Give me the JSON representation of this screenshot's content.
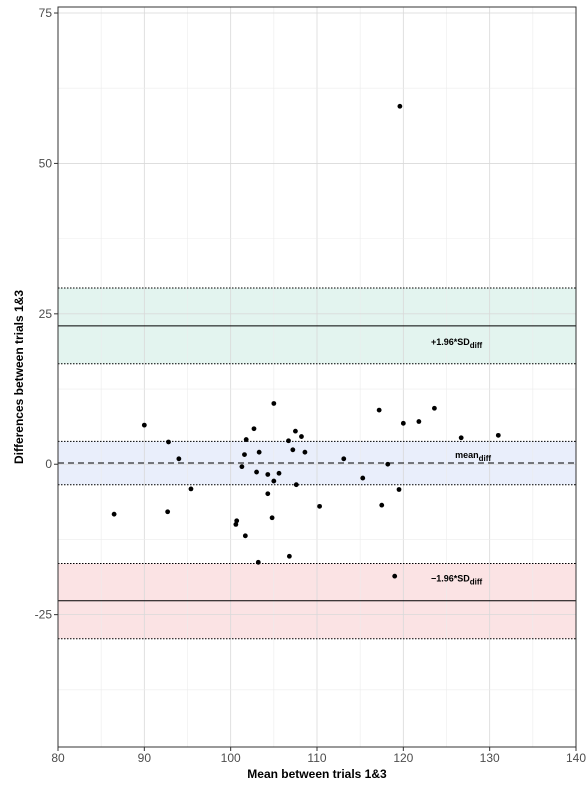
{
  "chart_data": {
    "type": "scatter",
    "title": "",
    "xlabel": "Mean between trials 1&3",
    "ylabel": "Differences between trials 1&3",
    "xlim": [
      80,
      140
    ],
    "ylim": [
      -47,
      76
    ],
    "x_ticks": [
      80,
      90,
      100,
      110,
      120,
      130,
      140
    ],
    "y_ticks": [
      -25,
      0,
      25,
      50,
      75
    ],
    "x_tick_labels": [
      "80",
      "90",
      "100",
      "110",
      "120",
      "130",
      "140"
    ],
    "y_tick_labels": [
      "-25",
      "0",
      "25",
      "50",
      "75"
    ],
    "grid": true,
    "bands": [
      {
        "name": "upper",
        "low": 16.7,
        "high": 29.3,
        "line": 23.0,
        "color": "#e3f4ef"
      },
      {
        "name": "mean",
        "low": -3.4,
        "high": 3.8,
        "line": 0.2,
        "color": "#e9eefb"
      },
      {
        "name": "lower",
        "low": -29.0,
        "high": -16.5,
        "line": -22.7,
        "color": "#fbe3e4"
      }
    ],
    "annotations": {
      "upper": {
        "main": "+1.96*SD",
        "sub": "diff",
        "x": 123.2,
        "y": 19.8
      },
      "mean": {
        "main": "mean",
        "sub": "diff",
        "x": 126.0,
        "y": 1.0
      },
      "lower": {
        "main": "−1.96*SD",
        "sub": "diff",
        "x": 123.2,
        "y": -19.5
      }
    },
    "points": [
      [
        86.5,
        -8.3
      ],
      [
        90.0,
        6.5
      ],
      [
        92.8,
        3.7
      ],
      [
        92.7,
        -7.9
      ],
      [
        94.0,
        0.9
      ],
      [
        95.4,
        -4.1
      ],
      [
        100.7,
        -9.4
      ],
      [
        100.6,
        -10.0
      ],
      [
        101.3,
        -0.4
      ],
      [
        101.6,
        1.6
      ],
      [
        101.7,
        -11.9
      ],
      [
        101.8,
        4.1
      ],
      [
        102.7,
        5.9
      ],
      [
        103.0,
        -1.3
      ],
      [
        103.3,
        2.0
      ],
      [
        103.2,
        -16.3
      ],
      [
        104.3,
        -4.9
      ],
      [
        104.3,
        -1.7
      ],
      [
        104.8,
        -8.9
      ],
      [
        105.0,
        10.1
      ],
      [
        105.0,
        -2.8
      ],
      [
        105.6,
        -1.5
      ],
      [
        106.8,
        -15.3
      ],
      [
        106.7,
        3.9
      ],
      [
        107.2,
        2.4
      ],
      [
        107.5,
        5.5
      ],
      [
        107.6,
        -3.4
      ],
      [
        108.2,
        4.6
      ],
      [
        108.6,
        2.0
      ],
      [
        110.3,
        -7.0
      ],
      [
        113.1,
        0.9
      ],
      [
        115.3,
        -2.3
      ],
      [
        117.2,
        9.0
      ],
      [
        117.5,
        -6.8
      ],
      [
        118.2,
        0.0
      ],
      [
        119.0,
        -18.6
      ],
      [
        119.5,
        -4.2
      ],
      [
        120.0,
        6.8
      ],
      [
        119.6,
        59.5
      ],
      [
        121.8,
        7.1
      ],
      [
        123.6,
        9.3
      ],
      [
        126.7,
        4.4
      ],
      [
        131.0,
        4.8
      ]
    ]
  }
}
